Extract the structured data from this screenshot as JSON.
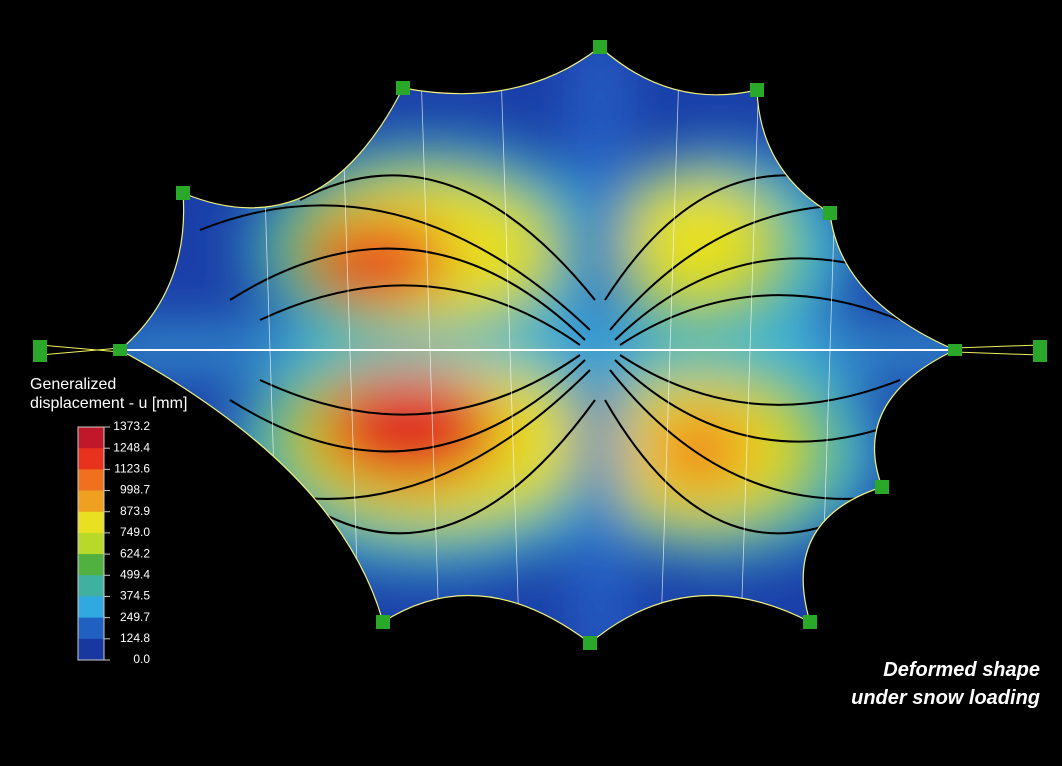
{
  "legend": {
    "title": [
      "Generalized",
      "displacement - u [mm]"
    ],
    "levels": [
      "1373.2",
      "1248.4",
      "1123.6",
      "998.7",
      "873.9",
      "749.0",
      "624.2",
      "499.4",
      "374.5",
      "249.7",
      "124.8",
      "0.0"
    ]
  },
  "caption": [
    "Deformed shape",
    "under snow loading"
  ]
}
